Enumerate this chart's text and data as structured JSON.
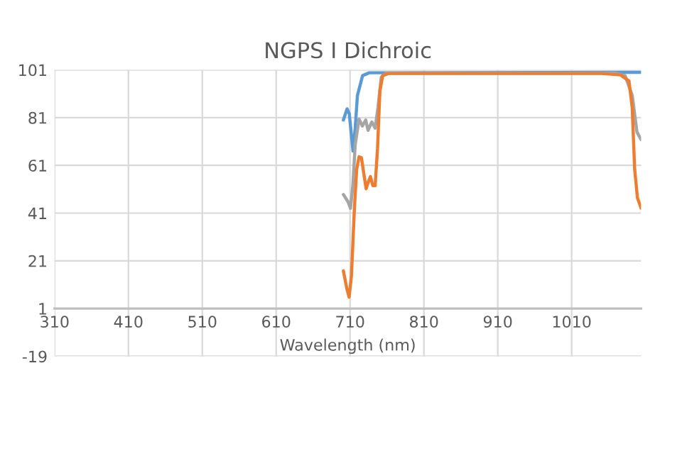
{
  "chart_data": {
    "type": "line",
    "title": "NGPS I Dichroic",
    "xlabel": "Wavelength (nm)",
    "xlim": [
      310,
      1104
    ],
    "xticks": [
      310,
      410,
      510,
      610,
      710,
      810,
      910,
      1010
    ],
    "ylim": [
      -19,
      101
    ],
    "yticks": [
      -19,
      1,
      21,
      41,
      61,
      81,
      101
    ],
    "grid": true,
    "marker": "none",
    "line_style": "solid",
    "series": [
      {
        "color": "#5b9bd5",
        "x": [
          701,
          706,
          709,
          714,
          717,
          720,
          727,
          736,
          1104
        ],
        "values": [
          80,
          84.7,
          82.6,
          67,
          76.6,
          90.3,
          98.6,
          99.8,
          100
        ]
      },
      {
        "color": "#a5a5a5",
        "x": [
          701,
          707.4,
          710.6,
          713.8,
          717,
          722.2,
          726.7,
          731.2,
          734.4,
          739.5,
          744,
          747.8,
          752.3,
          758.7,
          1069.6,
          1082.4,
          1092,
          1098.5,
          1104
        ],
        "values": [
          48.8,
          45.7,
          43,
          52.5,
          69.7,
          80.4,
          77.5,
          80,
          75.7,
          79.2,
          76.6,
          85.2,
          98,
          99.6,
          99.6,
          98.6,
          90.3,
          74.9,
          71.8
        ]
      },
      {
        "color": "#ed7d31",
        "x": [
          701,
          705.5,
          708.7,
          711.9,
          715.8,
          719,
          722.2,
          725.4,
          728.6,
          731.8,
          735,
          737.6,
          740.8,
          744,
          747.2,
          750.4,
          754.2,
          761.9,
          1050.4,
          1076,
          1087.6,
          1092,
          1095.3,
          1099.1,
          1104
        ],
        "values": [
          16.8,
          9.6,
          5.8,
          14.7,
          42.2,
          59.4,
          64.6,
          64.2,
          57.7,
          51.2,
          54.3,
          56.3,
          52.5,
          52.5,
          68,
          92,
          98.6,
          99.5,
          99.5,
          98.9,
          96.4,
          85.2,
          59.4,
          47.4,
          43.1
        ]
      }
    ]
  }
}
